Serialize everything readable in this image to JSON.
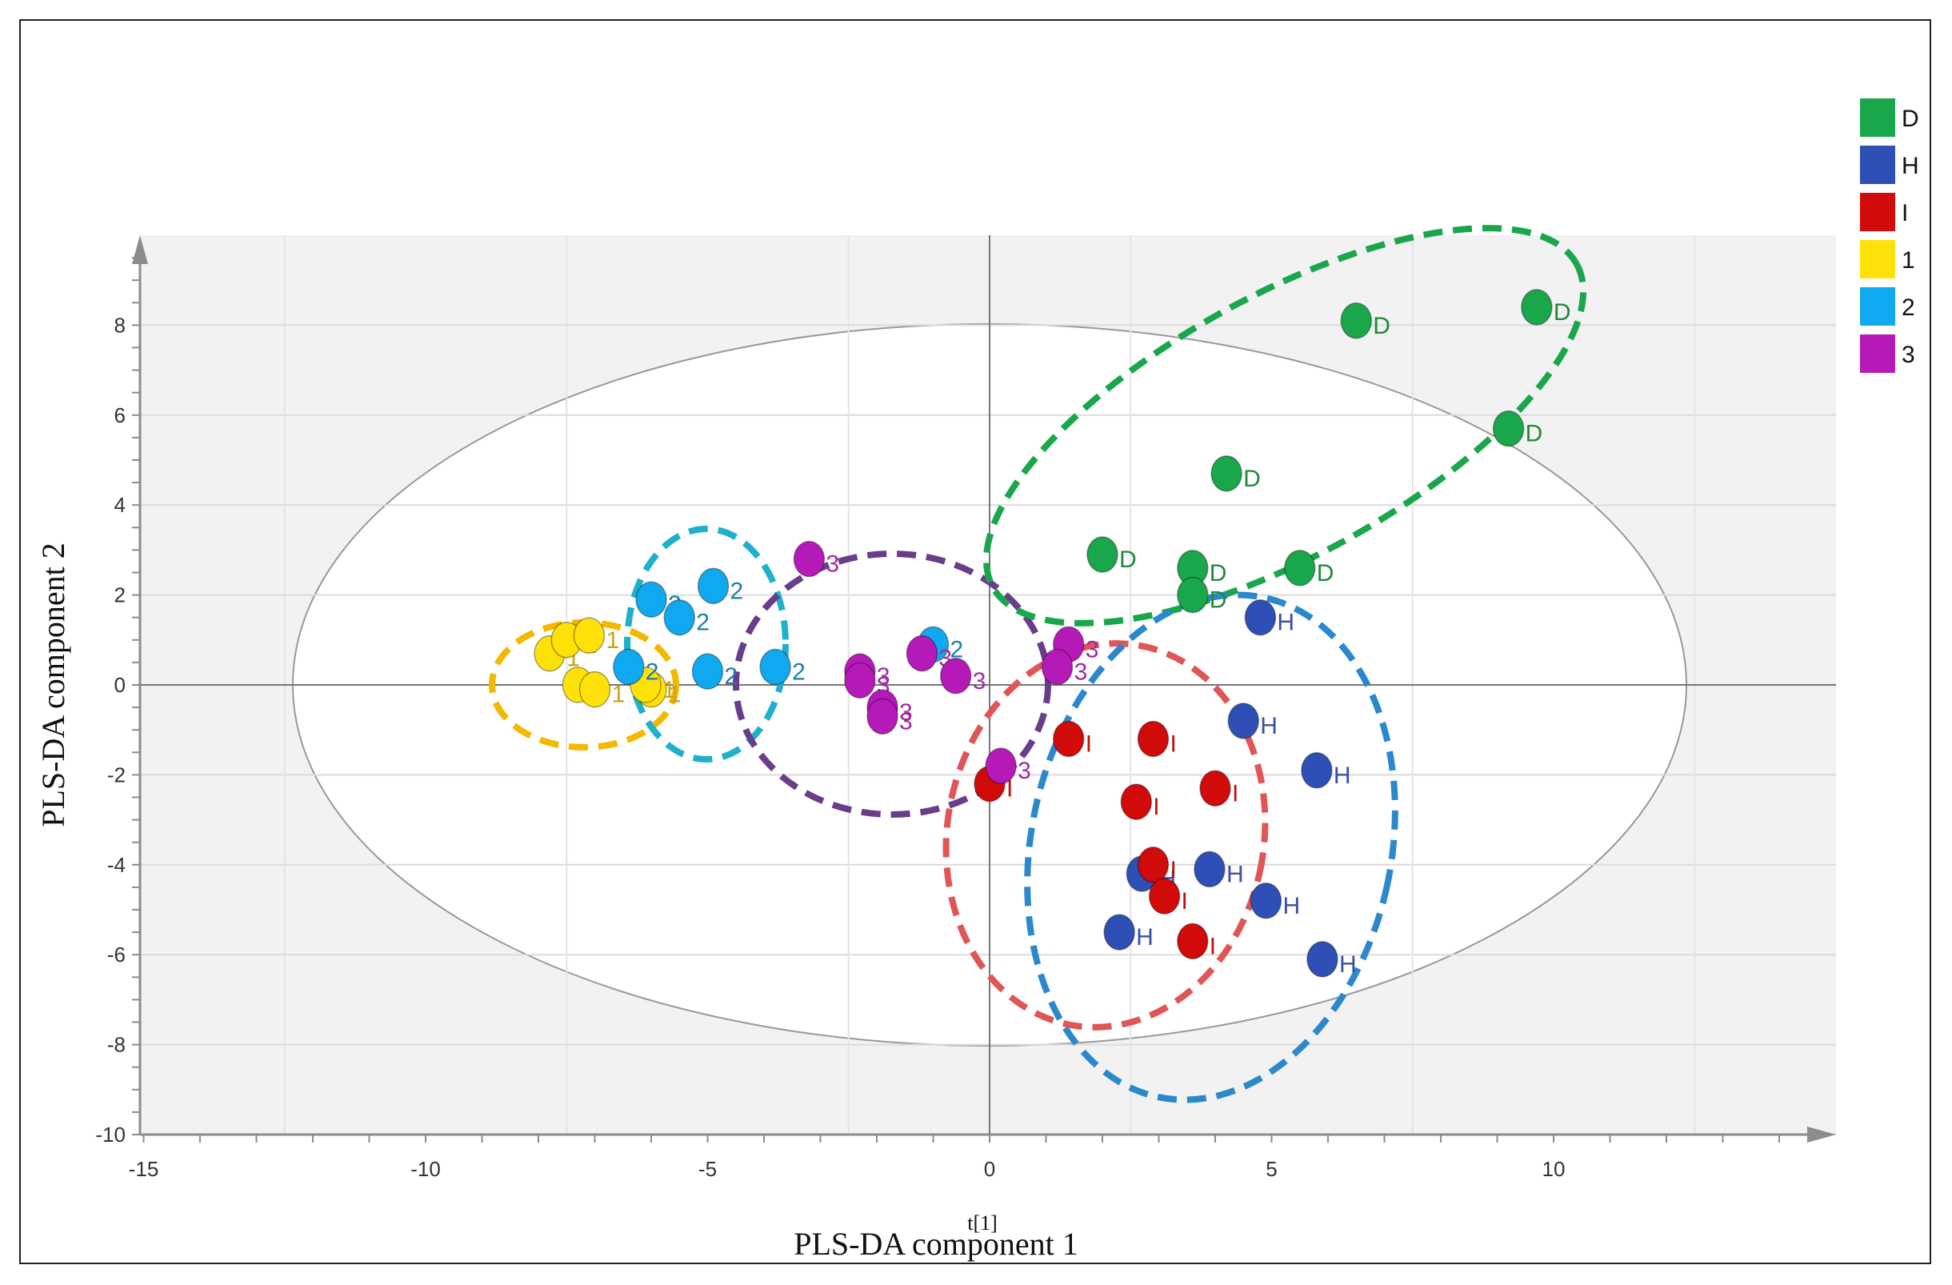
{
  "chart_data": {
    "type": "scatter",
    "title": "",
    "xlabel": "PLS-DA component 1",
    "xlabel_small": "t[1]",
    "ylabel": "PLS-DA component 2",
    "xlim": [
      -15,
      15
    ],
    "ylim": [
      -10,
      10
    ],
    "xticks": [
      -15,
      -10,
      -5,
      0,
      5,
      10
    ],
    "yticks": [
      -10,
      -8,
      -6,
      -4,
      -2,
      0,
      2,
      4,
      6,
      8
    ],
    "grid": true,
    "legend_position": "top-right",
    "series": [
      {
        "name": "D",
        "color": "#1aa64b",
        "label_color": "#1f8a3a",
        "points": [
          [
            6.5,
            8.1
          ],
          [
            9.7,
            8.4
          ],
          [
            9.2,
            5.7
          ],
          [
            4.2,
            4.7
          ],
          [
            2.0,
            2.9
          ],
          [
            3.6,
            2.6
          ],
          [
            3.6,
            2.0
          ],
          [
            5.5,
            2.6
          ]
        ]
      },
      {
        "name": "H",
        "color": "#2e4fb5",
        "label_color": "#3a4fa8",
        "points": [
          [
            4.8,
            1.5
          ],
          [
            4.5,
            -0.8
          ],
          [
            5.8,
            -1.9
          ],
          [
            2.7,
            -4.2
          ],
          [
            3.9,
            -4.1
          ],
          [
            4.9,
            -4.8
          ],
          [
            2.3,
            -5.5
          ],
          [
            5.9,
            -6.1
          ]
        ]
      },
      {
        "name": "I",
        "color": "#d10a0a",
        "label_color": "#c01010",
        "points": [
          [
            1.4,
            -1.2
          ],
          [
            2.9,
            -1.2
          ],
          [
            0.0,
            -2.2
          ],
          [
            2.6,
            -2.6
          ],
          [
            4.0,
            -2.3
          ],
          [
            2.9,
            -4.0
          ],
          [
            3.1,
            -4.7
          ],
          [
            3.6,
            -5.7
          ]
        ]
      },
      {
        "name": "1",
        "color": "#ffe10a",
        "label_color": "#c8a616",
        "points": [
          [
            -7.8,
            0.7
          ],
          [
            -7.5,
            1.0
          ],
          [
            -7.1,
            1.1
          ],
          [
            -7.3,
            0.0
          ],
          [
            -7.0,
            -0.1
          ],
          [
            -6.0,
            -0.1
          ],
          [
            -6.1,
            0.0
          ]
        ]
      },
      {
        "name": "2",
        "color": "#10a8ee",
        "label_color": "#1b7fa6",
        "points": [
          [
            -6.0,
            1.9
          ],
          [
            -5.5,
            1.5
          ],
          [
            -4.9,
            2.2
          ],
          [
            -6.4,
            0.4
          ],
          [
            -5.0,
            0.3
          ],
          [
            -3.8,
            0.4
          ],
          [
            -1.0,
            0.9
          ]
        ]
      },
      {
        "name": "3",
        "color": "#b51ab8",
        "label_color": "#a02aa6",
        "points": [
          [
            -3.2,
            2.8
          ],
          [
            -2.3,
            0.3
          ],
          [
            -2.3,
            0.1
          ],
          [
            -1.2,
            0.7
          ],
          [
            -0.6,
            0.2
          ],
          [
            -1.9,
            -0.5
          ],
          [
            -1.9,
            -0.7
          ],
          [
            1.4,
            0.9
          ],
          [
            1.2,
            0.4
          ],
          [
            0.2,
            -1.8
          ]
        ]
      }
    ],
    "legend": [
      "D",
      "H",
      "I",
      "1",
      "2",
      "3"
    ]
  }
}
